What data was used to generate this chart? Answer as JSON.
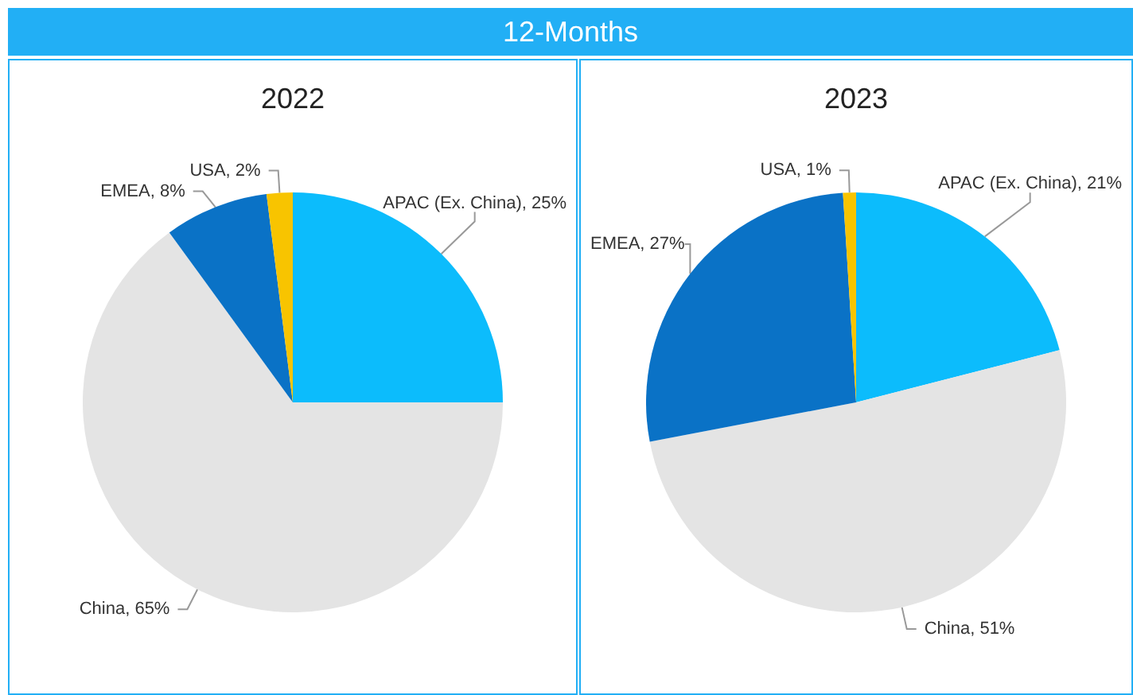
{
  "chart_data": [
    {
      "type": "pie",
      "title": "2022",
      "annotations": [
        "12-Months"
      ],
      "categories": [
        "APAC (Ex. China)",
        "China",
        "EMEA",
        "USA"
      ],
      "values": [
        25,
        65,
        8,
        2
      ],
      "value_labels": [
        "25%",
        "65%",
        "8%",
        "2%"
      ],
      "colors": [
        "#0cbcfc",
        "#e4e4e4",
        "#0a72c6",
        "#f8c400"
      ],
      "legend": false
    },
    {
      "type": "pie",
      "title": "2023",
      "categories": [
        "APAC (Ex. China)",
        "China",
        "EMEA",
        "USA"
      ],
      "values": [
        21,
        51,
        27,
        1
      ],
      "value_labels": [
        "21%",
        "51%",
        "27%",
        "1%"
      ],
      "colors": [
        "#0cbcfc",
        "#e4e4e4",
        "#0a72c6",
        "#f8c400"
      ],
      "legend": false
    }
  ]
}
